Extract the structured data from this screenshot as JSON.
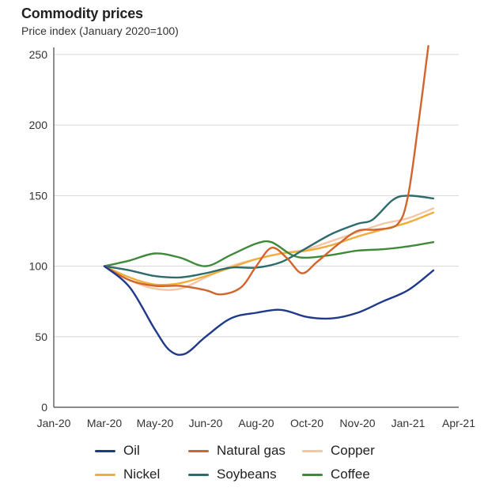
{
  "chart_data": {
    "type": "line",
    "title": "Commodity prices",
    "subtitle": "Price index (January 2020=100)",
    "x_ticks": [
      "Jan-20",
      "Mar-20",
      "May-20",
      "Jun-20",
      "Aug-20",
      "Oct-20",
      "Nov-20",
      "Jan-21",
      "Apr-21"
    ],
    "y_ticks": [
      "0",
      "50",
      "100",
      "150",
      "200",
      "250"
    ],
    "ylim": [
      0,
      255
    ],
    "grid": true,
    "legend_position": "bottom",
    "series": [
      {
        "name": "Oil",
        "color": "#1f3a8a",
        "points": [
          [
            1.0,
            100
          ],
          [
            1.5,
            85
          ],
          [
            2.0,
            55
          ],
          [
            2.3,
            40
          ],
          [
            2.6,
            38
          ],
          [
            3.0,
            50
          ],
          [
            3.5,
            63
          ],
          [
            4.0,
            67
          ],
          [
            4.5,
            69
          ],
          [
            5.0,
            64
          ],
          [
            5.5,
            63
          ],
          [
            6.0,
            67
          ],
          [
            6.5,
            75
          ],
          [
            7.0,
            83
          ],
          [
            7.5,
            97
          ]
        ]
      },
      {
        "name": "Natural gas",
        "color": "#d2642e",
        "points": [
          [
            1.0,
            100
          ],
          [
            1.5,
            90
          ],
          [
            2.0,
            86
          ],
          [
            2.5,
            86
          ],
          [
            3.0,
            83
          ],
          [
            3.3,
            80
          ],
          [
            3.7,
            85
          ],
          [
            4.0,
            100
          ],
          [
            4.3,
            113
          ],
          [
            4.6,
            106
          ],
          [
            4.9,
            95
          ],
          [
            5.2,
            103
          ],
          [
            5.6,
            115
          ],
          [
            6.0,
            125
          ],
          [
            6.4,
            126
          ],
          [
            6.8,
            130
          ],
          [
            7.0,
            150
          ],
          [
            7.2,
            200
          ],
          [
            7.4,
            256
          ]
        ]
      },
      {
        "name": "Copper",
        "color": "#f2c7a5",
        "points": [
          [
            1.0,
            100
          ],
          [
            1.5,
            90
          ],
          [
            2.0,
            84
          ],
          [
            2.5,
            84
          ],
          [
            3.0,
            92
          ],
          [
            3.5,
            100
          ],
          [
            4.0,
            105
          ],
          [
            4.5,
            109
          ],
          [
            5.0,
            112
          ],
          [
            5.5,
            118
          ],
          [
            6.0,
            124
          ],
          [
            6.5,
            130
          ],
          [
            7.0,
            134
          ],
          [
            7.5,
            141
          ]
        ]
      },
      {
        "name": "Nickel",
        "color": "#f0ad3a",
        "points": [
          [
            1.0,
            100
          ],
          [
            1.5,
            92
          ],
          [
            2.0,
            87
          ],
          [
            2.5,
            88
          ],
          [
            3.0,
            93
          ],
          [
            3.5,
            99
          ],
          [
            4.0,
            105
          ],
          [
            4.5,
            109
          ],
          [
            5.0,
            111
          ],
          [
            5.5,
            115
          ],
          [
            6.0,
            121
          ],
          [
            6.5,
            126
          ],
          [
            7.0,
            131
          ],
          [
            7.5,
            138
          ]
        ]
      },
      {
        "name": "Soybeans",
        "color": "#2e6b6b",
        "points": [
          [
            1.0,
            100
          ],
          [
            1.5,
            97
          ],
          [
            2.0,
            93
          ],
          [
            2.5,
            92
          ],
          [
            3.0,
            95
          ],
          [
            3.5,
            99
          ],
          [
            4.0,
            99
          ],
          [
            4.5,
            103
          ],
          [
            5.0,
            113
          ],
          [
            5.5,
            123
          ],
          [
            6.0,
            130
          ],
          [
            6.3,
            133
          ],
          [
            6.7,
            147
          ],
          [
            7.0,
            150
          ],
          [
            7.5,
            148
          ]
        ]
      },
      {
        "name": "Coffee",
        "color": "#3f8a3a",
        "points": [
          [
            1.0,
            100
          ],
          [
            1.5,
            104
          ],
          [
            2.0,
            109
          ],
          [
            2.5,
            106
          ],
          [
            3.0,
            100
          ],
          [
            3.5,
            108
          ],
          [
            4.0,
            116
          ],
          [
            4.3,
            117
          ],
          [
            4.7,
            108
          ],
          [
            5.0,
            106
          ],
          [
            5.5,
            108
          ],
          [
            6.0,
            111
          ],
          [
            6.5,
            112
          ],
          [
            7.0,
            114
          ],
          [
            7.5,
            117
          ]
        ]
      }
    ]
  }
}
